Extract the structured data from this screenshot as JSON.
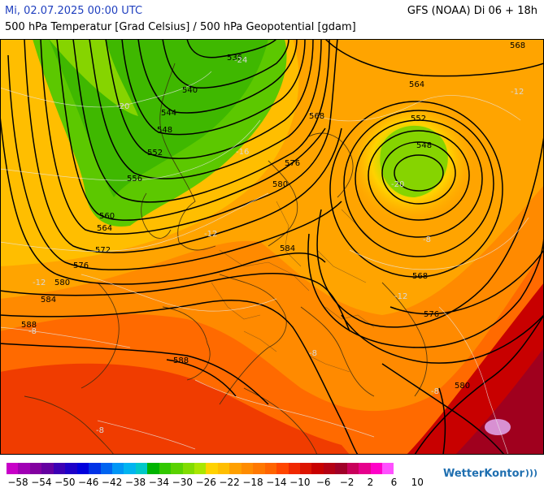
{
  "header": {
    "date_label": "Mi, 02.07.2025 00:00 UTC",
    "model_label": "GFS (NOAA) Di 06 + 18h",
    "param_label": "500 hPa Temperatur [Grad Celsius] / 500 hPa Geopotential [gdam]"
  },
  "map": {
    "geopotential_labels": [
      "536",
      "540",
      "544",
      "548",
      "552",
      "556",
      "560",
      "564",
      "572",
      "576",
      "580",
      "584",
      "588",
      "568",
      "564",
      "552",
      "548",
      "568",
      "576",
      "580",
      "584",
      "588",
      "568"
    ],
    "temperature_labels": [
      "-24",
      "-20",
      "-16",
      "-12",
      "-12",
      "-8",
      "-8",
      "-8",
      "-8",
      "-12",
      "-12",
      "-8",
      "-20"
    ]
  },
  "legend": {
    "ticks": [
      "-58",
      "-54",
      "-50",
      "-46",
      "-42",
      "-38",
      "-34",
      "-30",
      "-26",
      "-22",
      "-18",
      "-14",
      "-10",
      "-6",
      "-2",
      "2",
      "6",
      "10"
    ],
    "colors": [
      "#c800c8",
      "#a000b4",
      "#8200a0",
      "#6400a0",
      "#3c00b4",
      "#1e00c8",
      "#0000dc",
      "#0032e6",
      "#0064f0",
      "#0096f5",
      "#00b4f0",
      "#00c8c8",
      "#00b400",
      "#32c800",
      "#5ad200",
      "#82dc00",
      "#aae600",
      "#ffd200",
      "#ffbe00",
      "#ffa000",
      "#ff8c00",
      "#ff7800",
      "#ff6400",
      "#ff4600",
      "#f02800",
      "#dc1400",
      "#c80000",
      "#b40014",
      "#a00028",
      "#c8005a",
      "#e6008c",
      "#ff00c8",
      "#ff50ff"
    ],
    "brand": "WetterKontor"
  }
}
